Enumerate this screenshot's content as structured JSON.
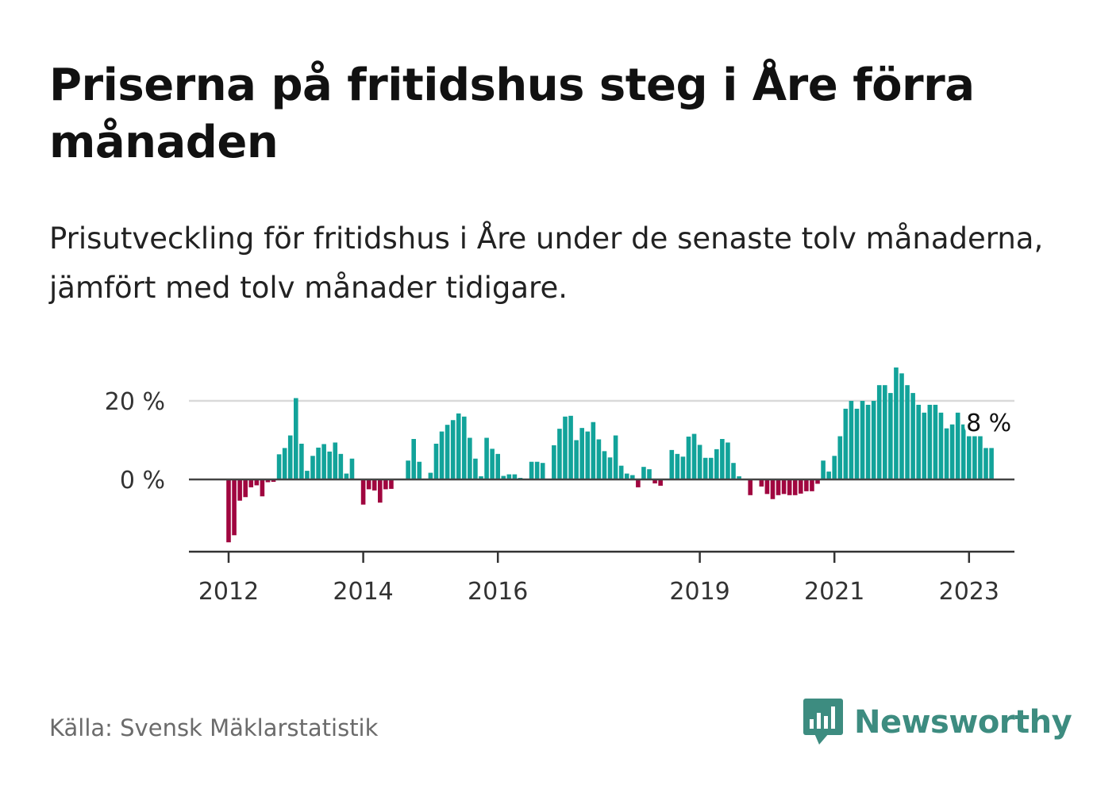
{
  "header": {
    "title": "Priserna på fritidshus steg i Åre förra månaden",
    "subtitle": "Prisutveckling för fritidshus i Åre under de senaste tolv månaderna, jämfört med tolv månader tidigare."
  },
  "footer": {
    "source": "Källa: Svensk Mäklarstatistik",
    "brand": "Newsworthy",
    "brand_icon": "bar-chart-speech-bubble-icon"
  },
  "colors": {
    "positive": "#12a39a",
    "negative": "#a0063f",
    "brand": "#3d8c80"
  },
  "chart_data": {
    "type": "bar",
    "title": "",
    "xlabel": "",
    "ylabel": "",
    "unit": "%",
    "x_ticks": [
      {
        "label": "2012",
        "year": 2012.0
      },
      {
        "label": "2014",
        "year": 2014.0
      },
      {
        "label": "2016",
        "year": 2016.0
      },
      {
        "label": "2019",
        "year": 2019.0
      },
      {
        "label": "2021",
        "year": 2021.0
      },
      {
        "label": "2023",
        "year": 2023.0
      }
    ],
    "y_ticks": [
      {
        "label": "0 %",
        "value": 0
      },
      {
        "label": "20 %",
        "value": 20
      }
    ],
    "ylim": [
      -18,
      30
    ],
    "grid": "horizontal at 20 %",
    "last_label": "8 %",
    "start_year": 2012.0,
    "values": [
      -16,
      -14.2,
      -5.4,
      -4.5,
      -2,
      -1.5,
      -4.3,
      -0.7,
      -0.6,
      6.4,
      8,
      11.2,
      20.7,
      9.1,
      2.2,
      6,
      8.1,
      9,
      7.1,
      9.4,
      6.5,
      1.5,
      5.3,
      0,
      -6.4,
      -2.5,
      -2.8,
      -5.9,
      -2.5,
      -2.4,
      0,
      0,
      4.8,
      10.3,
      4.5,
      0,
      1.7,
      9.1,
      12.2,
      13.9,
      15.1,
      16.8,
      16,
      10.6,
      5.3,
      0.8,
      10.6,
      7.8,
      6.5,
      0.9,
      1.3,
      1.3,
      0.4,
      0,
      4.5,
      4.5,
      4.2,
      0,
      8.7,
      12.9,
      16,
      16.2,
      10,
      13.1,
      12.2,
      14.6,
      10.2,
      7.2,
      5.6,
      11.2,
      3.5,
      1.5,
      1.1,
      -2,
      3.2,
      2.6,
      -1,
      -1.6,
      0,
      7.5,
      6.5,
      5.8,
      10.9,
      11.6,
      8.8,
      5.5,
      5.5,
      7.7,
      10.3,
      9.4,
      4.2,
      0.8,
      0,
      -4,
      0,
      -1.8,
      -3.7,
      -5,
      -4,
      -3.7,
      -4,
      -4,
      -3.6,
      -3,
      -3,
      -1.1,
      4.8,
      2,
      6,
      11,
      18,
      20,
      18,
      20,
      19,
      20,
      24,
      24,
      22,
      28.5,
      27,
      24,
      22,
      19,
      17,
      19,
      19,
      17,
      13,
      14,
      17,
      14,
      11,
      11,
      11,
      8,
      8
    ]
  }
}
